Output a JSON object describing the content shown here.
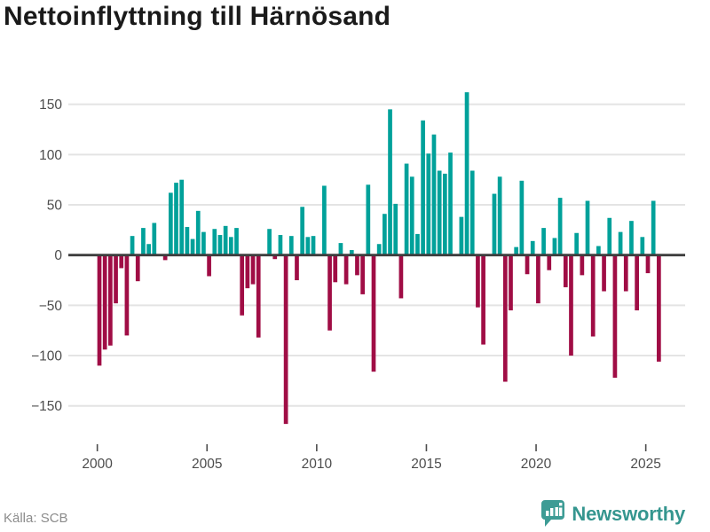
{
  "title": "Nettoinflyttning till Härnösand",
  "source": "Källa: SCB",
  "brand": {
    "name": "Newsworthy",
    "icon": "bar-chart-bubble-icon"
  },
  "colors": {
    "positive_bar": "#00a19a",
    "negative_bar": "#a00d45",
    "grid_line": "#e4e4e4",
    "zero_axis": "#3e3e3e",
    "tick_label": "#4d4d4d",
    "title_text": "#1a1a1a",
    "source_text": "#8c8c8c",
    "brand_teal": "#35968f",
    "background": "#ffffff"
  },
  "chart_data": {
    "type": "bar",
    "title": "Nettoinflyttning till Härnösand",
    "frequency": "quarterly",
    "start_year": 2000,
    "start_quarter": 1,
    "end_period": "2025 Q3",
    "ylim": [
      -175,
      175
    ],
    "grid": true,
    "y_tick_values": [
      150,
      100,
      50,
      0,
      -50,
      -100,
      -150
    ],
    "y_tick_labels": [
      "150",
      "100",
      "50",
      "0",
      "−50",
      "−100",
      "−150"
    ],
    "x_tick_years": [
      2000,
      2005,
      2010,
      2015,
      2020,
      2025
    ],
    "x_tick_labels": [
      "2000",
      "2005",
      "2010",
      "2015",
      "2020",
      "2025"
    ],
    "values": [
      -110,
      -94,
      -90,
      -48,
      -13,
      -80,
      19,
      -26,
      27,
      11,
      32,
      0,
      -5,
      62,
      72,
      75,
      28,
      16,
      44,
      23,
      -21,
      26,
      20,
      29,
      18,
      27,
      -60,
      -33,
      -29,
      -82,
      0,
      26,
      -4,
      20,
      -168,
      19,
      -25,
      48,
      18,
      19,
      0,
      69,
      -75,
      -27,
      12,
      -29,
      5,
      -20,
      -39,
      70,
      -116,
      11,
      41,
      145,
      51,
      -43,
      91,
      78,
      21,
      134,
      101,
      120,
      84,
      81,
      102,
      0,
      38,
      162,
      84,
      -52,
      -89,
      0,
      61,
      78,
      -126,
      -55,
      8,
      74,
      -19,
      14,
      -48,
      27,
      -15,
      17,
      57,
      -32,
      -100,
      22,
      -20,
      54,
      -81,
      9,
      -36,
      37,
      -122,
      23,
      -36,
      34,
      -55,
      18,
      -18,
      54,
      -106
    ]
  }
}
